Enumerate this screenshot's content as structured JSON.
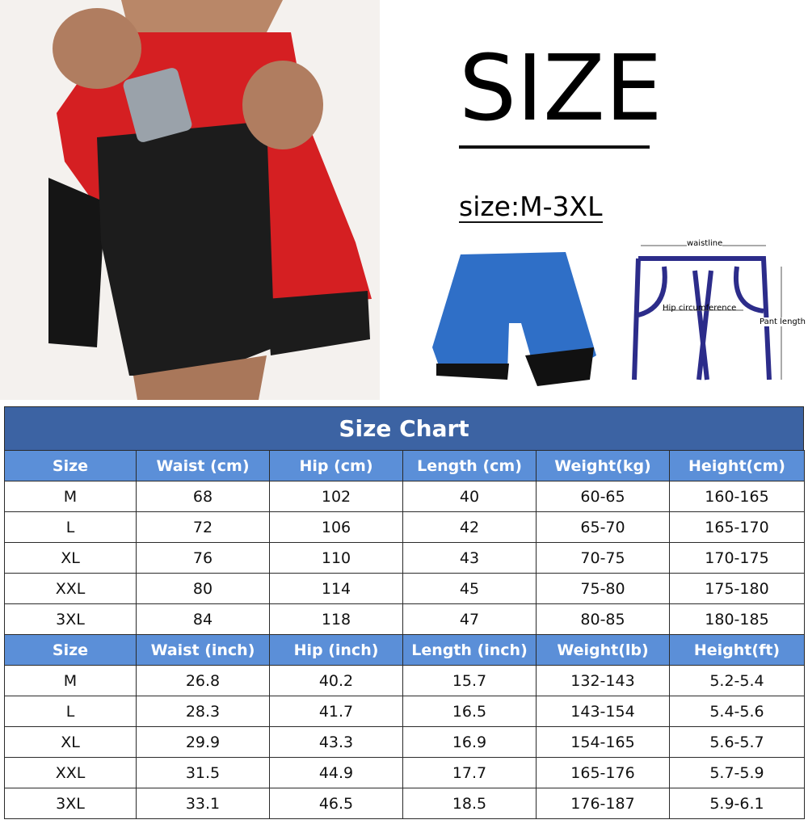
{
  "header": {
    "title": "SIZE",
    "subtitle": "size:M-3XL"
  },
  "diagram": {
    "waist": "waistline",
    "hip": "Hip circumference",
    "length": "Pant length"
  },
  "table": {
    "title": "Size Chart",
    "sections": [
      {
        "header": [
          "Size",
          "Waist  (cm)",
          "Hip  (cm)",
          "Length  (cm)",
          "Weight(kg)",
          "Height(cm)"
        ],
        "rows": [
          [
            "M",
            "68",
            "102",
            "40",
            "60-65",
            "160-165"
          ],
          [
            "L",
            "72",
            "106",
            "42",
            "65-70",
            "165-170"
          ],
          [
            "XL",
            "76",
            "110",
            "43",
            "70-75",
            "170-175"
          ],
          [
            "XXL",
            "80",
            "114",
            "45",
            "75-80",
            "175-180"
          ],
          [
            "3XL",
            "84",
            "118",
            "47",
            "80-85",
            "180-185"
          ]
        ]
      },
      {
        "header": [
          "Size",
          "Waist (inch)",
          "Hip (inch)",
          "Length (inch)",
          "Weight(lb)",
          "Height(ft)"
        ],
        "rows": [
          [
            "M",
            "26.8",
            "40.2",
            "15.7",
            "132-143",
            "5.2-5.4"
          ],
          [
            "L",
            "28.3",
            "41.7",
            "16.5",
            "143-154",
            "5.4-5.6"
          ],
          [
            "XL",
            "29.9",
            "43.3",
            "16.9",
            "154-165",
            "5.6-5.7"
          ],
          [
            "XXL",
            "31.5",
            "44.9",
            "17.7",
            "165-176",
            "5.7-5.9"
          ],
          [
            "3XL",
            "33.1",
            "46.5",
            "18.5",
            "176-187",
            "5.9-6.1"
          ]
        ]
      }
    ]
  }
}
